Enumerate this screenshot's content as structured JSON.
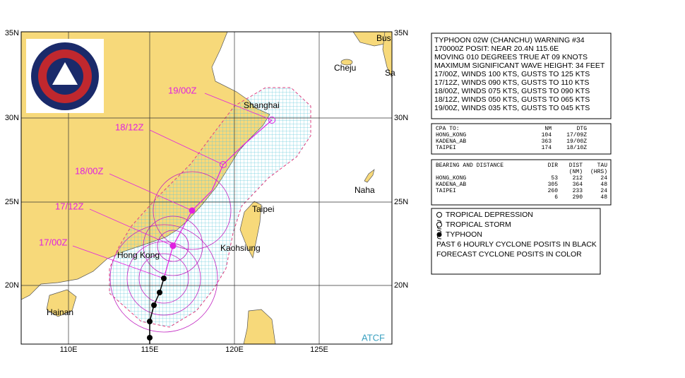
{
  "map": {
    "lat_labels_left": [
      "35N",
      "30N",
      "25N",
      "20N"
    ],
    "lat_labels_right": [
      "35N",
      "30N",
      "25N",
      "20N"
    ],
    "lon_labels": [
      "110E",
      "115E",
      "120E",
      "125E"
    ],
    "places": [
      "Bus",
      "Sa",
      "Cheju",
      "Shanghai",
      "Naha",
      "Taipei",
      "Kaohsiung",
      "Hong Kong",
      "Hainan"
    ],
    "forecast_times": [
      "17/00Z",
      "17/12Z",
      "18/00Z",
      "18/12Z",
      "19/00Z"
    ],
    "source": "ATCF"
  },
  "warning": {
    "lines": [
      "TYPHOON 02W (CHANCHU) WARNING #34",
      "170000Z POSIT: NEAR 20.4N 115.6E",
      "MOVING 010 DEGREES TRUE AT 09 KNOTS",
      "MAXIMUM SIGNIFICANT WAVE HEIGHT: 34 FEET",
      "17/00Z, WINDS 100 KTS, GUSTS TO 125 KTS",
      "17/12Z, WINDS 090 KTS, GUSTS TO 110 KTS",
      "18/00Z, WINDS 075 KTS, GUSTS TO 090 KTS",
      "18/12Z, WINDS 050 KTS, GUSTS TO 065 KTS",
      "19/00Z, WINDS 035 KTS, GUSTS TO 045 KTS"
    ]
  },
  "cpa": {
    "header": [
      "CPA TO:",
      "NM",
      "DTG"
    ],
    "rows": [
      [
        "HONG_KONG",
        "104",
        "17/09Z"
      ],
      [
        "KADENA_AB",
        "363",
        "19/00Z"
      ],
      [
        "TAIPEI",
        "174",
        "18/10Z"
      ]
    ]
  },
  "bearing": {
    "header": [
      "BEARING AND DISTANCE",
      "DIR",
      "DIST",
      "TAU"
    ],
    "units": [
      "(NM)",
      "(HRS)"
    ],
    "rows": [
      [
        "HONG_KONG",
        "53",
        "212",
        "24"
      ],
      [
        "KADENA_AB",
        "305",
        "364",
        "48"
      ],
      [
        "TAIPEI",
        "260",
        "233",
        "24"
      ],
      [
        "6",
        "290",
        "48"
      ]
    ]
  },
  "legend": {
    "items": [
      "TROPICAL DEPRESSION",
      "TROPICAL STORM",
      "TYPHOON"
    ],
    "notes": [
      "PAST 6 HOURLY CYCLONE POSITS IN BLACK",
      "FORECAST CYCLONE POSITS IN COLOR"
    ]
  }
}
